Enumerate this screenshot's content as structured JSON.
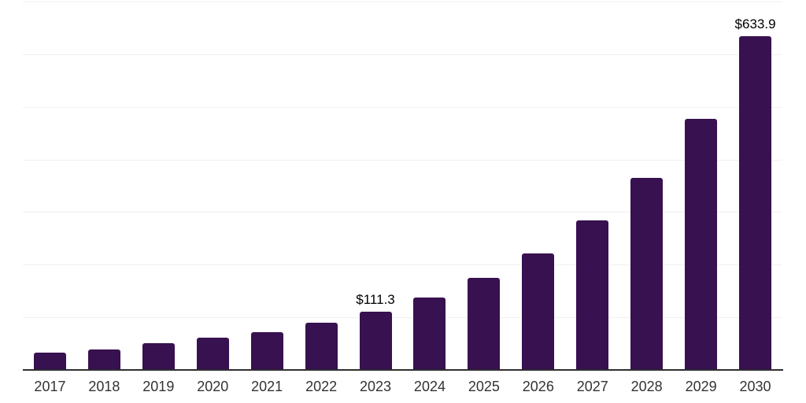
{
  "chart_data": {
    "type": "bar",
    "title": "",
    "xlabel": "",
    "ylabel": "",
    "categories": [
      "2017",
      "2018",
      "2019",
      "2020",
      "2021",
      "2022",
      "2023",
      "2024",
      "2025",
      "2026",
      "2027",
      "2028",
      "2029",
      "2030"
    ],
    "values": [
      33,
      39,
      51,
      61,
      72,
      90,
      111.3,
      138,
      175,
      221,
      284,
      365,
      477,
      633.9
    ],
    "data_labels": [
      "",
      "",
      "",
      "",
      "",
      "",
      "$111.3",
      "",
      "",
      "",
      "",
      "",
      "",
      "$633.9"
    ],
    "ylim": [
      0,
      700
    ],
    "gridline_step": 100,
    "grid": true,
    "legend": false,
    "bar_color": "#371150",
    "gridline_color": "#f0f0f0",
    "axis_color": "#2e2e2e",
    "value_label_color": "#000000",
    "tick_label_color": "#333333"
  }
}
